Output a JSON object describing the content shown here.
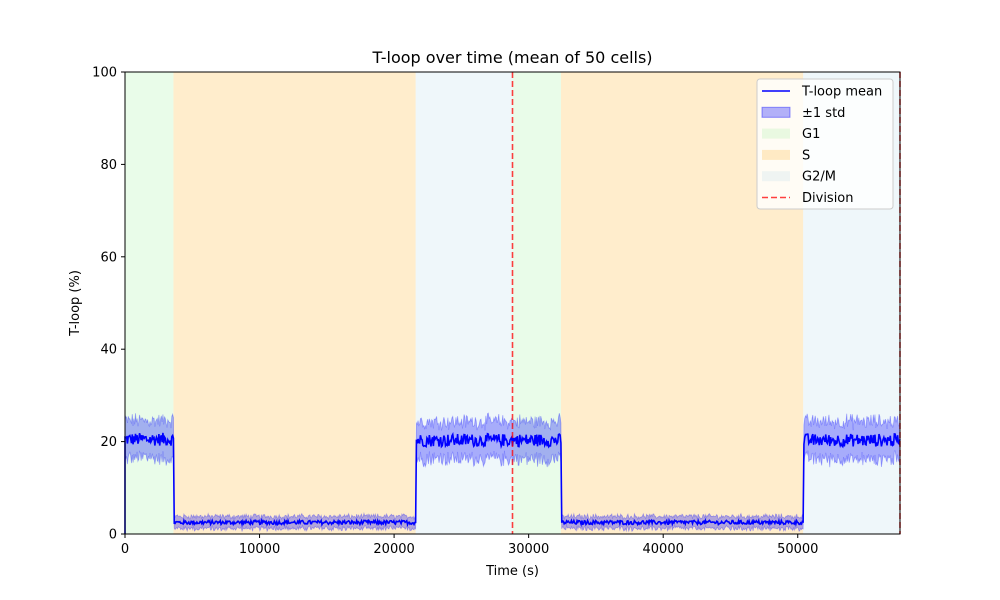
{
  "chart_data": {
    "type": "line",
    "title": "T-loop over time (mean of 50 cells)",
    "xlabel": "Time (s)",
    "ylabel": "T-loop (%)",
    "xlim": [
      0,
      57600
    ],
    "ylim": [
      0,
      100
    ],
    "xticks": [
      0,
      10000,
      20000,
      30000,
      40000,
      50000
    ],
    "yticks": [
      0,
      20,
      40,
      60,
      80,
      100
    ],
    "grid": false,
    "legend": {
      "placement": "top-right",
      "entries": [
        {
          "label": "T-loop mean",
          "kind": "line",
          "color": "#0000ff"
        },
        {
          "label": "±1 std",
          "kind": "patch",
          "color": "#0000ff",
          "alpha": 0.3
        },
        {
          "label": "G1",
          "kind": "patch",
          "color": "#90ee90",
          "alpha": 0.2
        },
        {
          "label": "S",
          "kind": "patch",
          "color": "#ffa500",
          "alpha": 0.2
        },
        {
          "label": "G2/M",
          "kind": "patch",
          "color": "#add8e6",
          "alpha": 0.2
        },
        {
          "label": "Division",
          "kind": "dashed",
          "color": "#ff0000"
        }
      ]
    },
    "phases": [
      {
        "phase": "G1",
        "start": 0,
        "end": 3600,
        "color": "#90ee90"
      },
      {
        "phase": "S",
        "start": 3600,
        "end": 21600,
        "color": "#ffa500"
      },
      {
        "phase": "G2/M",
        "start": 21600,
        "end": 28800,
        "color": "#add8e6"
      },
      {
        "phase": "G1",
        "start": 28800,
        "end": 32400,
        "color": "#90ee90"
      },
      {
        "phase": "S",
        "start": 32400,
        "end": 50400,
        "color": "#ffa500"
      },
      {
        "phase": "G2/M",
        "start": 50400,
        "end": 57600,
        "color": "#add8e6"
      }
    ],
    "divisions": [
      28800,
      57600
    ],
    "series": [
      {
        "name": "T-loop mean",
        "color": "#0000ff",
        "segments": [
          {
            "x_start": 0,
            "x_end": 3600,
            "mean": 20.5,
            "std": 4.0
          },
          {
            "x_start": 3600,
            "x_end": 21600,
            "mean": 2.5,
            "std": 1.3
          },
          {
            "x_start": 21600,
            "x_end": 32400,
            "mean": 20.3,
            "std": 4.0
          },
          {
            "x_start": 32400,
            "x_end": 50400,
            "mean": 2.5,
            "std": 1.3
          },
          {
            "x_start": 50400,
            "x_end": 57600,
            "mean": 20.3,
            "std": 4.0
          }
        ]
      }
    ]
  }
}
